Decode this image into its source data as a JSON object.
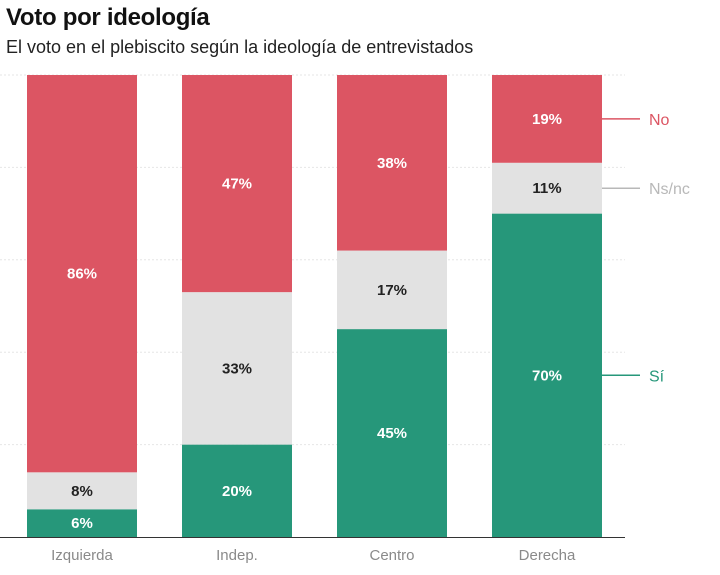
{
  "header": {
    "title": "Voto por ideología",
    "subtitle": "El voto en el plebiscito según la ideología de entrevistados"
  },
  "chart_data": {
    "type": "bar",
    "stacked": true,
    "orientation": "vertical",
    "title": "Voto por ideología",
    "subtitle": "El voto en el plebiscito según la ideología de entrevistados",
    "xlabel": "",
    "ylabel": "",
    "ylim": [
      0,
      100
    ],
    "grid": true,
    "categories": [
      "Izquierda",
      "Indep.",
      "Centro",
      "Derecha"
    ],
    "series": [
      {
        "name": "Sí",
        "color": "#26977a",
        "label_color": "#ffffff",
        "values": [
          6,
          20,
          45,
          70
        ],
        "labels": [
          "6%",
          "20%",
          "45%",
          "70%"
        ]
      },
      {
        "name": "Ns/nc",
        "color": "#e2e2e2",
        "label_color": "#222222",
        "values": [
          8,
          33,
          17,
          11
        ],
        "labels": [
          "8%",
          "33%",
          "17%",
          "11%"
        ]
      },
      {
        "name": "No",
        "color": "#dc5563",
        "label_color": "#ffffff",
        "values": [
          86,
          47,
          38,
          19
        ],
        "labels": [
          "86%",
          "47%",
          "38%",
          "19%"
        ]
      }
    ],
    "legend": [
      {
        "name": "No",
        "color": "#dc5563",
        "series": 2
      },
      {
        "name": "Ns/nc",
        "color": "#b8b8b8",
        "series": 1
      },
      {
        "name": "Sí",
        "color": "#26977a",
        "series": 0
      }
    ],
    "legend_placement": "right, inline at last bar"
  }
}
